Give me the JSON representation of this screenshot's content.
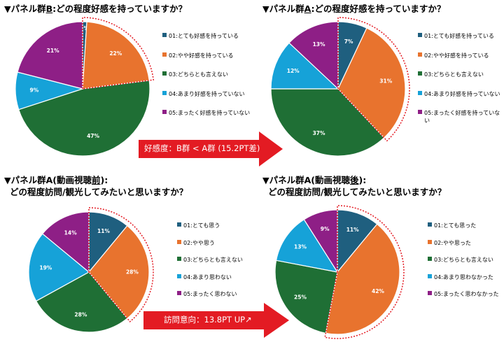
{
  "colors": {
    "s1": "#1f5f7f",
    "s2": "#e8732e",
    "s3": "#1f6f35",
    "s4": "#16a2d8",
    "s5": "#8e1f86",
    "arrow": "#e31b23",
    "highlight": "#e31b23"
  },
  "chart_data": [
    {
      "type": "pie",
      "id": "p1",
      "title_parts": [
        "▼パネル群",
        "B",
        ":どの程度好感を持っていますか？"
      ],
      "categories": [
        "01:とても好感を持っている",
        "02:やや好感を持っている",
        "03:どちらとも言えない",
        "04:あまり好感を持っていない",
        "05:まったく好感を持っていない"
      ],
      "values": [
        1,
        22,
        47,
        9,
        21
      ],
      "labels": [
        "1%",
        "22%",
        "47%",
        "9%",
        "21%"
      ],
      "highlight_series": [
        0,
        1
      ]
    },
    {
      "type": "pie",
      "id": "p2",
      "title_parts": [
        "▼パネル群",
        "A",
        ":どの程度好感を持っていますか？"
      ],
      "categories": [
        "01:とても好感を持っている",
        "02:やや好感を持っている",
        "03:どちらとも言えない",
        "04:あまり好感を持っていない",
        "05:まったく好感を持っていない"
      ],
      "values": [
        7,
        31,
        37,
        12,
        13
      ],
      "labels": [
        "7%",
        "31%",
        "37%",
        "12%",
        "13%"
      ],
      "highlight_series": [
        0,
        1
      ]
    },
    {
      "type": "pie",
      "id": "p3",
      "title_parts": [
        "▼パネル群A(動画視聴",
        "前",
        "):"
      ],
      "title_line2": "どの程度訪問/観光してみたいと思いますか？",
      "categories": [
        "01:とても思う",
        "02:やや思う",
        "03:どちらとも言えない",
        "04:あまり思わない",
        "05:まったく思わない"
      ],
      "values": [
        11,
        28,
        28,
        19,
        14
      ],
      "labels": [
        "11%",
        "28%",
        "28%",
        "19%",
        "14%"
      ],
      "highlight_series": [
        0,
        1
      ]
    },
    {
      "type": "pie",
      "id": "p4",
      "title_parts": [
        "▼パネル群A(動画視聴",
        "後",
        "):"
      ],
      "title_line2": "どの程度訪問/観光してみたいと思いますか？",
      "categories": [
        "01:とても思った",
        "02:やや思った",
        "03:どちらとも言えない",
        "04:あまり思わなかった",
        "05:まったく思わなかった"
      ],
      "values": [
        11,
        42,
        25,
        13,
        9
      ],
      "labels": [
        "11%",
        "42%",
        "25%",
        "13%",
        "9%"
      ],
      "highlight_series": [
        0,
        1
      ]
    }
  ],
  "arrows": {
    "top": "好感度：B群 < A群 (15.2PT差)",
    "bottom": "訪問意向：13.8PT UP↗"
  }
}
